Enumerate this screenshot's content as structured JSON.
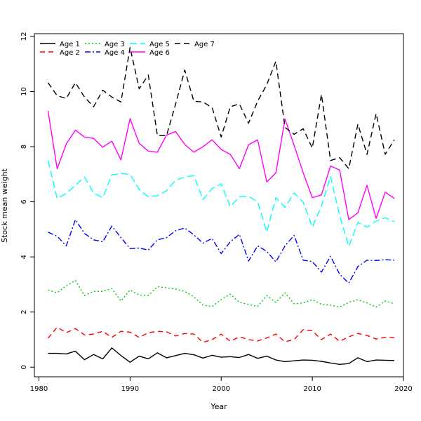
{
  "chart_data": {
    "type": "line",
    "title": "",
    "xlabel": "Year",
    "ylabel": "Stock mean weight",
    "xlim": [
      1980,
      2020
    ],
    "ylim": [
      0,
      12
    ],
    "xticks": [
      1980,
      1990,
      2000,
      2010,
      2020
    ],
    "yticks": [
      0,
      2,
      4,
      6,
      8,
      10,
      12
    ],
    "grid": false,
    "legend_position": "top-left",
    "x": [
      1981,
      1982,
      1983,
      1984,
      1985,
      1986,
      1987,
      1988,
      1989,
      1990,
      1991,
      1992,
      1993,
      1994,
      1995,
      1996,
      1997,
      1998,
      1999,
      2000,
      2001,
      2002,
      2003,
      2004,
      2005,
      2006,
      2007,
      2008,
      2009,
      2010,
      2011,
      2012,
      2013,
      2014,
      2015,
      2016,
      2017,
      2018,
      2019
    ],
    "series": [
      {
        "name": "Age 1",
        "color": "#000000",
        "dash": "solid",
        "values": [
          0.5,
          0.5,
          0.48,
          0.58,
          0.27,
          0.46,
          0.3,
          0.7,
          0.42,
          0.18,
          0.4,
          0.3,
          0.52,
          0.34,
          0.42,
          0.5,
          0.45,
          0.33,
          0.43,
          0.36,
          0.38,
          0.35,
          0.46,
          0.32,
          0.4,
          0.26,
          0.2,
          0.23,
          0.26,
          0.25,
          0.21,
          0.15,
          0.1,
          0.13,
          0.34,
          0.2,
          0.26,
          0.25,
          0.24
        ]
      },
      {
        "name": "Age 2",
        "color": "#ff0000",
        "dash": "redshort",
        "values": [
          1.05,
          1.45,
          1.25,
          1.4,
          1.17,
          1.2,
          1.3,
          1.08,
          1.3,
          1.27,
          1.08,
          1.25,
          1.3,
          1.28,
          1.13,
          1.22,
          1.2,
          0.9,
          1.0,
          1.2,
          0.94,
          1.1,
          1.0,
          0.95,
          1.06,
          1.2,
          0.92,
          1.0,
          1.36,
          1.32,
          1.0,
          1.2,
          0.94,
          1.1,
          1.22,
          1.15,
          1.02,
          1.08,
          1.07
        ]
      },
      {
        "name": "Age 3",
        "color": "#00cc00",
        "dash": "dotted",
        "values": [
          2.8,
          2.7,
          2.95,
          3.15,
          2.6,
          2.75,
          2.75,
          2.85,
          2.4,
          2.8,
          2.62,
          2.6,
          2.92,
          2.88,
          2.83,
          2.75,
          2.55,
          2.25,
          2.2,
          2.45,
          2.65,
          2.35,
          2.28,
          2.2,
          2.6,
          2.35,
          2.7,
          2.3,
          2.33,
          2.45,
          2.28,
          2.25,
          2.18,
          2.35,
          2.45,
          2.33,
          2.18,
          2.4,
          2.3
        ]
      },
      {
        "name": "Age 4",
        "color": "#0000ff",
        "dash": "dashdot",
        "values": [
          4.9,
          4.75,
          4.4,
          5.35,
          4.85,
          4.62,
          4.55,
          5.12,
          4.7,
          4.3,
          4.32,
          4.25,
          4.62,
          4.7,
          4.95,
          5.05,
          4.8,
          4.5,
          4.67,
          4.12,
          4.55,
          4.82,
          3.85,
          4.4,
          4.2,
          3.82,
          4.4,
          4.78,
          3.88,
          3.83,
          3.45,
          4.02,
          3.37,
          3.05,
          3.65,
          3.88,
          3.87,
          3.9,
          3.88
        ]
      },
      {
        "name": "Age 5",
        "color": "#00ffff",
        "dash": "longdash",
        "values": [
          7.5,
          6.12,
          6.3,
          6.6,
          6.9,
          6.32,
          6.15,
          6.98,
          7.02,
          7.0,
          6.45,
          6.18,
          6.22,
          6.4,
          6.78,
          6.9,
          6.95,
          6.08,
          6.48,
          6.65,
          5.82,
          6.18,
          6.2,
          6.0,
          4.9,
          6.15,
          5.8,
          6.32,
          5.98,
          5.08,
          5.85,
          6.92,
          5.5,
          4.38,
          5.25,
          5.08,
          5.3,
          5.42,
          5.28
        ]
      },
      {
        "name": "Age 6",
        "color": "#ff00ff",
        "dash": "solid",
        "values": [
          9.3,
          7.2,
          8.1,
          8.6,
          8.35,
          8.3,
          7.98,
          8.2,
          7.52,
          9.02,
          8.12,
          7.84,
          7.8,
          8.42,
          8.55,
          8.08,
          7.8,
          8.0,
          8.25,
          7.9,
          7.72,
          7.2,
          8.07,
          8.25,
          6.72,
          7.05,
          9.0,
          8.05,
          7.05,
          6.15,
          6.25,
          7.3,
          7.15,
          5.35,
          5.6,
          6.6,
          5.4,
          6.35,
          6.12
        ]
      },
      {
        "name": "Age 7",
        "color": "#000000",
        "dash": "dashed",
        "values": [
          10.32,
          9.85,
          9.75,
          10.32,
          9.8,
          9.45,
          10.05,
          9.8,
          9.62,
          11.6,
          10.1,
          10.6,
          8.4,
          8.4,
          9.55,
          10.78,
          9.65,
          9.62,
          9.42,
          8.35,
          9.45,
          9.55,
          8.85,
          9.65,
          10.25,
          11.1,
          8.7,
          8.45,
          8.65,
          7.95,
          9.9,
          7.5,
          7.6,
          7.2,
          8.82,
          7.72,
          9.2,
          7.72,
          8.25
        ]
      }
    ]
  }
}
